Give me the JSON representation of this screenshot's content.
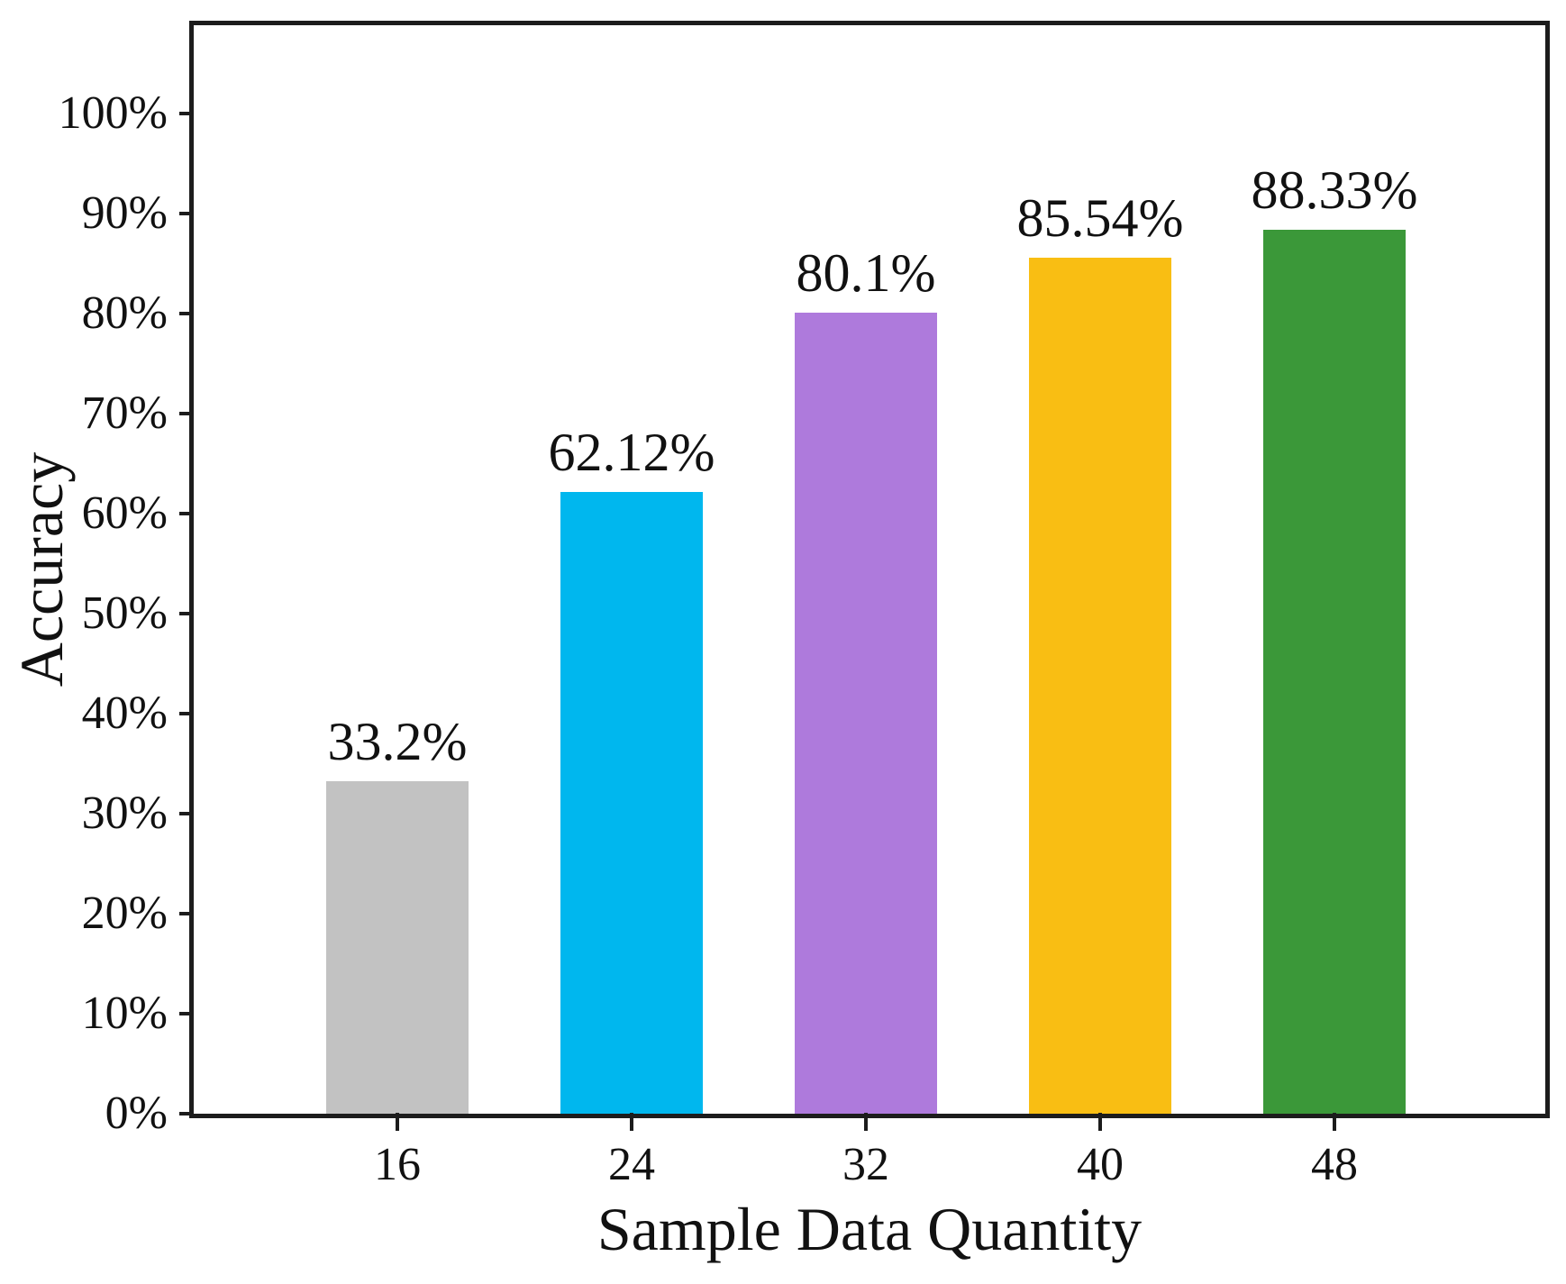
{
  "chart_data": {
    "type": "bar",
    "title": "",
    "xlabel": "Sample Data Quantity",
    "ylabel": "Accuracy",
    "categories": [
      "16",
      "24",
      "32",
      "40",
      "48"
    ],
    "values": [
      33.2,
      62.12,
      80.1,
      85.54,
      88.33
    ],
    "bar_labels": [
      "33.2%",
      "62.12%",
      "80.1%",
      "85.54%",
      "88.33%"
    ],
    "bar_colors": [
      "#c2c2c2",
      "#00b7ee",
      "#ae7adc",
      "#f9be13",
      "#3b9839"
    ],
    "y_ticks": [
      {
        "value": 0,
        "label": "0%"
      },
      {
        "value": 10,
        "label": "10%"
      },
      {
        "value": 20,
        "label": "20%"
      },
      {
        "value": 30,
        "label": "30%"
      },
      {
        "value": 40,
        "label": "40%"
      },
      {
        "value": 50,
        "label": "50%"
      },
      {
        "value": 60,
        "label": "60%"
      },
      {
        "value": 70,
        "label": "70%"
      },
      {
        "value": 80,
        "label": "80%"
      },
      {
        "value": 90,
        "label": "90%"
      },
      {
        "value": 100,
        "label": "100%"
      }
    ],
    "ylim": [
      0,
      108.8
    ],
    "grid": false,
    "legend": false,
    "axis_color": "#1c1c1c",
    "text_color": "#111111",
    "background": "#ffffff"
  }
}
